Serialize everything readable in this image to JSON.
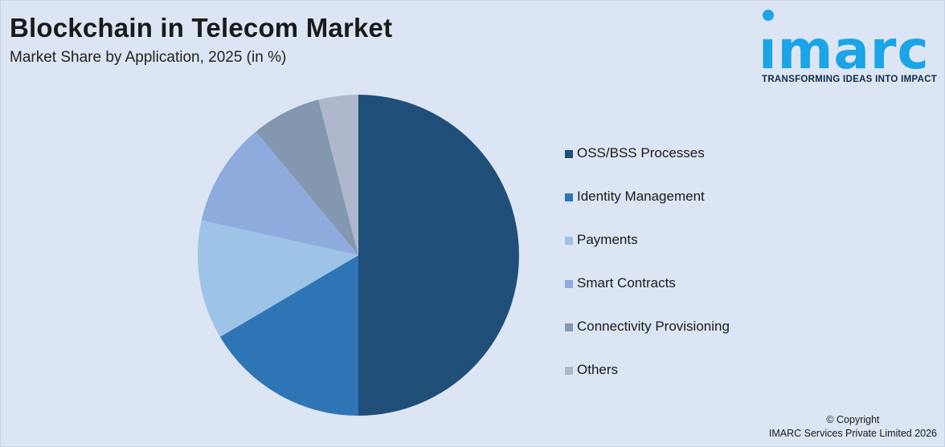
{
  "header": {
    "title": "Blockchain in Telecom Market",
    "subtitle": "Market Share by Application, 2025 (in %)"
  },
  "logo": {
    "word": "ımarc",
    "tagline": "TRANSFORMING IDEAS INTO IMPACT",
    "color": "#1ba4e6"
  },
  "chart_data": {
    "type": "pie",
    "title": "Blockchain in Telecom Market",
    "subtitle": "Market Share by Application, 2025 (in %)",
    "legend_position": "right",
    "slices": [
      {
        "label": "OSS/BSS Processes",
        "value": 50,
        "color": "#1f4e79"
      },
      {
        "label": "Identity Management",
        "value": 16.5,
        "color": "#2e75b6"
      },
      {
        "label": "Payments",
        "value": 12,
        "color": "#9dc3e6"
      },
      {
        "label": "Smart Contracts",
        "value": 10.5,
        "color": "#8faadc"
      },
      {
        "label": "Connectivity Provisioning",
        "value": 7,
        "color": "#8497b0"
      },
      {
        "label": "Others",
        "value": 4,
        "color": "#adb9ca"
      }
    ]
  },
  "footer": {
    "copyright_line1": "© Copyright",
    "copyright_line2": "IMARC Services Private Limited 2026"
  }
}
